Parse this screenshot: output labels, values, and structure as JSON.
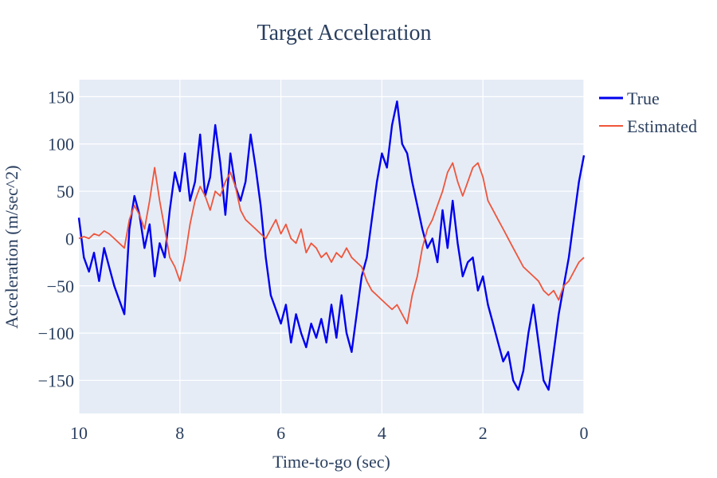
{
  "chart_data": {
    "type": "line",
    "title": "Target Acceleration",
    "xlabel": "Time-to-go (sec)",
    "ylabel": "Acceleration (m/sec^2)",
    "xlim": [
      10,
      0
    ],
    "ylim": [
      -185,
      168
    ],
    "x_ticks": [
      10,
      8,
      6,
      4,
      2,
      0
    ],
    "y_ticks": [
      150,
      100,
      50,
      0,
      -50,
      -100,
      -150
    ],
    "y_tick_labels": [
      "150",
      "100",
      "50",
      "0",
      "−50",
      "−100",
      "−150"
    ],
    "x_tick_labels": [
      "10",
      "8",
      "6",
      "4",
      "2",
      "0"
    ],
    "legend_position": "top-right",
    "series": [
      {
        "name": "True",
        "color": "#0000ee",
        "x": [
          10,
          9.9,
          9.8,
          9.7,
          9.6,
          9.5,
          9.4,
          9.3,
          9.2,
          9.1,
          9.0,
          8.9,
          8.8,
          8.7,
          8.6,
          8.5,
          8.4,
          8.3,
          8.2,
          8.1,
          8.0,
          7.9,
          7.8,
          7.7,
          7.6,
          7.5,
          7.4,
          7.3,
          7.2,
          7.1,
          7.0,
          6.9,
          6.8,
          6.7,
          6.6,
          6.5,
          6.4,
          6.3,
          6.2,
          6.1,
          6.0,
          5.9,
          5.8,
          5.7,
          5.6,
          5.5,
          5.4,
          5.3,
          5.2,
          5.1,
          5.0,
          4.9,
          4.8,
          4.7,
          4.6,
          4.5,
          4.4,
          4.3,
          4.2,
          4.1,
          4.0,
          3.9,
          3.8,
          3.7,
          3.6,
          3.5,
          3.4,
          3.3,
          3.2,
          3.1,
          3.0,
          2.9,
          2.8,
          2.7,
          2.6,
          2.5,
          2.4,
          2.3,
          2.2,
          2.1,
          2.0,
          1.9,
          1.8,
          1.7,
          1.6,
          1.5,
          1.4,
          1.3,
          1.2,
          1.1,
          1.0,
          0.9,
          0.8,
          0.7,
          0.6,
          0.5,
          0.4,
          0.3,
          0.2,
          0.1,
          0.0
        ],
        "y": [
          22,
          -20,
          -35,
          -15,
          -45,
          -10,
          -30,
          -50,
          -65,
          -80,
          10,
          45,
          25,
          -10,
          15,
          -40,
          -5,
          -20,
          30,
          70,
          50,
          90,
          40,
          60,
          110,
          45,
          65,
          120,
          80,
          25,
          90,
          55,
          40,
          60,
          110,
          75,
          35,
          -20,
          -60,
          -75,
          -90,
          -70,
          -110,
          -80,
          -100,
          -115,
          -90,
          -105,
          -85,
          -110,
          -70,
          -105,
          -60,
          -100,
          -120,
          -80,
          -40,
          -20,
          20,
          60,
          90,
          75,
          120,
          145,
          100,
          90,
          60,
          35,
          10,
          -10,
          0,
          -25,
          30,
          -10,
          40,
          -5,
          -40,
          -25,
          -20,
          -55,
          -40,
          -70,
          -90,
          -110,
          -130,
          -120,
          -150,
          -160,
          -140,
          -100,
          -70,
          -110,
          -150,
          -160,
          -120,
          -80,
          -50,
          -20,
          20,
          60,
          88
        ]
      },
      {
        "name": "Estimated",
        "color": "#ef553b",
        "x": [
          10,
          9.9,
          9.8,
          9.7,
          9.6,
          9.5,
          9.4,
          9.3,
          9.2,
          9.1,
          9.0,
          8.9,
          8.8,
          8.7,
          8.6,
          8.5,
          8.4,
          8.3,
          8.2,
          8.1,
          8.0,
          7.9,
          7.8,
          7.7,
          7.6,
          7.5,
          7.4,
          7.3,
          7.2,
          7.1,
          7.0,
          6.9,
          6.8,
          6.7,
          6.6,
          6.5,
          6.4,
          6.3,
          6.2,
          6.1,
          6.0,
          5.9,
          5.8,
          5.7,
          5.6,
          5.5,
          5.4,
          5.3,
          5.2,
          5.1,
          5.0,
          4.9,
          4.8,
          4.7,
          4.6,
          4.5,
          4.4,
          4.3,
          4.2,
          4.1,
          4.0,
          3.9,
          3.8,
          3.7,
          3.6,
          3.5,
          3.4,
          3.3,
          3.2,
          3.1,
          3.0,
          2.9,
          2.8,
          2.7,
          2.6,
          2.5,
          2.4,
          2.3,
          2.2,
          2.1,
          2.0,
          1.9,
          1.8,
          1.7,
          1.6,
          1.5,
          1.4,
          1.3,
          1.2,
          1.1,
          1.0,
          0.9,
          0.8,
          0.7,
          0.6,
          0.5,
          0.4,
          0.3,
          0.2,
          0.1,
          0.0
        ],
        "y": [
          0,
          2,
          0,
          5,
          3,
          8,
          5,
          0,
          -5,
          -10,
          20,
          35,
          25,
          10,
          40,
          75,
          40,
          10,
          -20,
          -30,
          -45,
          -20,
          15,
          40,
          55,
          45,
          30,
          50,
          45,
          60,
          70,
          55,
          30,
          20,
          15,
          10,
          5,
          0,
          10,
          20,
          5,
          15,
          0,
          -5,
          10,
          -15,
          -5,
          -10,
          -20,
          -15,
          -25,
          -15,
          -20,
          -10,
          -20,
          -25,
          -30,
          -45,
          -55,
          -60,
          -65,
          -70,
          -75,
          -70,
          -80,
          -90,
          -60,
          -40,
          -10,
          10,
          20,
          35,
          50,
          70,
          80,
          60,
          45,
          60,
          75,
          80,
          65,
          40,
          30,
          20,
          10,
          0,
          -10,
          -20,
          -30,
          -35,
          -40,
          -45,
          -55,
          -60,
          -55,
          -65,
          -50,
          -45,
          -35,
          -25,
          -20
        ]
      }
    ]
  }
}
